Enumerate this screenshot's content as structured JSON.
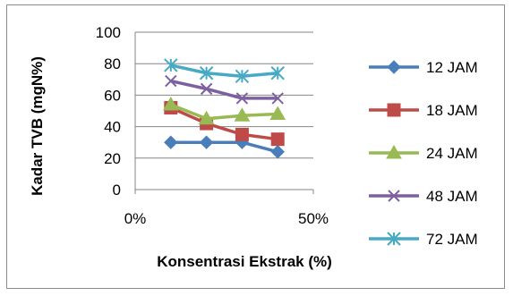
{
  "chart_data": {
    "type": "line",
    "title": "",
    "xlabel": "Konsentrasi Ekstrak (%)",
    "ylabel": "Kadar TVB (mgN%)",
    "x": [
      0.1,
      0.2,
      0.3,
      0.4
    ],
    "xlim": [
      0,
      0.5
    ],
    "xticks": [
      0,
      0.5
    ],
    "xtick_labels": [
      "0%",
      "50%"
    ],
    "ylim": [
      0,
      100
    ],
    "yticks": [
      0,
      20,
      40,
      60,
      80,
      100
    ],
    "ytick_labels": [
      "0",
      "20",
      "40",
      "60",
      "80",
      "100"
    ],
    "grid": "horizontal",
    "legend_position": "right",
    "series": [
      {
        "name": "12 JAM",
        "values": [
          30,
          30,
          30,
          24
        ],
        "color": "#4a7ebb",
        "marker": "diamond"
      },
      {
        "name": "18 JAM",
        "values": [
          52,
          42,
          35,
          32
        ],
        "color": "#be4b48",
        "marker": "square"
      },
      {
        "name": "24 JAM",
        "values": [
          54,
          45,
          47,
          48
        ],
        "color": "#98b954",
        "marker": "triangle"
      },
      {
        "name": "48 JAM",
        "values": [
          69,
          64,
          58,
          58
        ],
        "color": "#7d60a0",
        "marker": "x"
      },
      {
        "name": "72 JAM",
        "values": [
          79,
          74,
          72,
          74
        ],
        "color": "#46aac5",
        "marker": "star"
      }
    ]
  }
}
